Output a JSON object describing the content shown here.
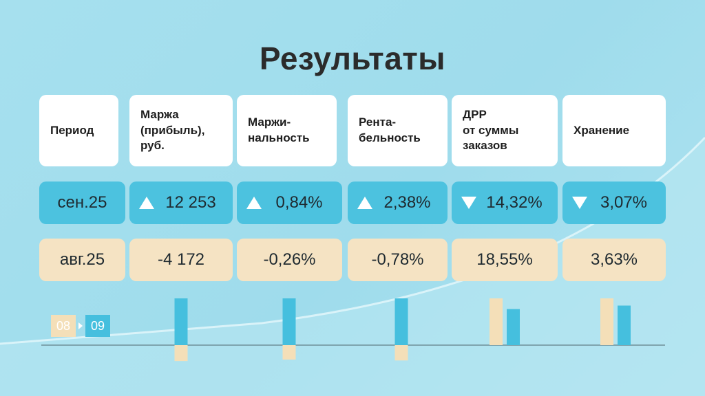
{
  "title": "Результаты",
  "headers": [
    "Период",
    "Маржа\n(прибыль),\nруб.",
    "Маржи-\nнальность",
    "Рента-\nбельность",
    "ДРР\nот суммы\nзаказов",
    "Хранение"
  ],
  "rows": [
    {
      "period": "сен.25",
      "cells": [
        {
          "text": "12 253",
          "trend": "up"
        },
        {
          "text": "0,84%",
          "trend": "up"
        },
        {
          "text": "2,38%",
          "trend": "up"
        },
        {
          "text": "14,32%",
          "trend": "down"
        },
        {
          "text": "3,07%",
          "trend": "down"
        }
      ]
    },
    {
      "period": "авг.25",
      "cells": [
        {
          "text": "-4 172"
        },
        {
          "text": "-0,26%"
        },
        {
          "text": "-0,78%"
        },
        {
          "text": "18,55%"
        },
        {
          "text": "3,63%"
        }
      ]
    }
  ],
  "legend": {
    "prev": "08",
    "curr": "09"
  },
  "colors": {
    "blue": "#4cc2df",
    "beige": "#f5e3c3",
    "prev_bar": "#f4dfb8",
    "curr_bar": "#45bfde"
  },
  "chart_data": {
    "type": "bar",
    "categories": [
      "Маржа (прибыль), руб.",
      "Маржинальность",
      "Рентабельность",
      "ДРР от суммы заказов",
      "Хранение"
    ],
    "series": [
      {
        "name": "08",
        "values": [
          -4172,
          -0.26,
          -0.78,
          18.55,
          3.63
        ]
      },
      {
        "name": "09",
        "values": [
          12253,
          0.84,
          2.38,
          14.32,
          3.07
        ]
      }
    ]
  }
}
